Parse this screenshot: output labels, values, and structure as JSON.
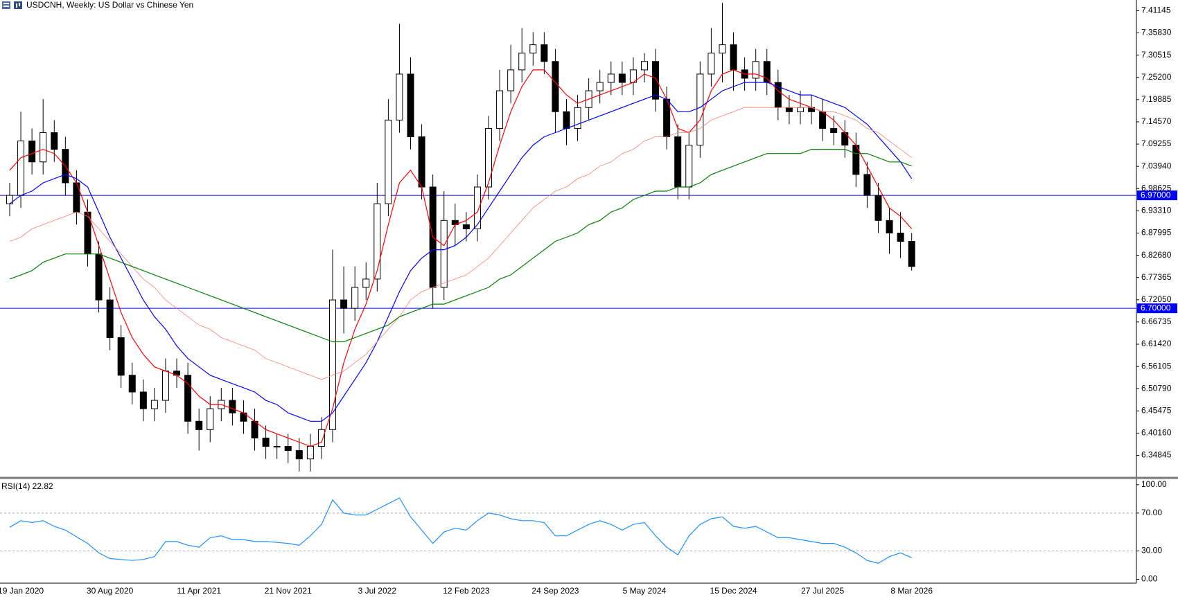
{
  "chart_data": {
    "type": "candlestick",
    "title": "USDCNH, Weekly:  US Dollar vs Chinese Yen",
    "categories": [
      null,
      "19 Jan 2020",
      null,
      null,
      null,
      null,
      null,
      null,
      null,
      "30 Aug 2020",
      null,
      null,
      null,
      null,
      null,
      null,
      null,
      "11 Apr 2021",
      null,
      null,
      null,
      null,
      null,
      null,
      null,
      "21 Nov 2021",
      null,
      null,
      null,
      null,
      null,
      null,
      null,
      "3 Jul 2022",
      null,
      null,
      null,
      null,
      null,
      null,
      null,
      "12 Feb 2023",
      null,
      null,
      null,
      null,
      null,
      null,
      null,
      "24 Sep 2023",
      null,
      null,
      null,
      null,
      null,
      null,
      null,
      "5 May 2024",
      null,
      null,
      null,
      null,
      null,
      null,
      null,
      "15 Dec 2024",
      null,
      null,
      null,
      null,
      null,
      null,
      null,
      "27 Jul 2025",
      null,
      null,
      null,
      null,
      null,
      null,
      null,
      "8 Mar 2026"
    ],
    "open": [
      6.95,
      6.97,
      7.1,
      7.05,
      7.12,
      7.08,
      7.0,
      6.93,
      6.83,
      6.72,
      6.63,
      6.54,
      6.5,
      6.46,
      6.48,
      6.55,
      6.54,
      6.43,
      6.41,
      6.46,
      6.48,
      6.45,
      6.43,
      6.39,
      6.37,
      6.37,
      6.36,
      6.34,
      6.37,
      6.41,
      6.72,
      6.7,
      6.75,
      6.77,
      6.95,
      7.15,
      7.26,
      7.11,
      6.99,
      6.75,
      6.91,
      6.9,
      6.89,
      6.99,
      7.13,
      7.22,
      7.27,
      7.31,
      7.33,
      7.29,
      7.17,
      7.13,
      7.18,
      7.22,
      7.24,
      7.26,
      7.24,
      7.27,
      7.29,
      7.2,
      7.11,
      6.99,
      7.09,
      7.26,
      7.31,
      7.33,
      7.27,
      7.25,
      7.29,
      7.24,
      7.18,
      7.17,
      7.18,
      7.17,
      7.13,
      7.12,
      7.09,
      7.02,
      6.97,
      6.91,
      6.88,
      6.86
    ],
    "high": [
      7.0,
      7.17,
      7.13,
      7.2,
      7.15,
      7.11,
      7.03,
      6.96,
      6.86,
      6.75,
      6.66,
      6.57,
      6.53,
      6.51,
      6.58,
      6.58,
      6.57,
      6.46,
      6.49,
      6.51,
      6.51,
      6.48,
      6.46,
      6.42,
      6.4,
      6.4,
      6.39,
      6.4,
      6.44,
      6.84,
      6.8,
      6.8,
      6.81,
      7.0,
      7.2,
      7.38,
      7.3,
      7.14,
      7.02,
      6.98,
      6.95,
      6.93,
      7.02,
      7.16,
      7.27,
      7.33,
      7.37,
      7.36,
      7.36,
      7.32,
      7.2,
      7.21,
      7.25,
      7.27,
      7.29,
      7.29,
      7.3,
      7.31,
      7.32,
      7.23,
      7.14,
      7.12,
      7.29,
      7.37,
      7.43,
      7.36,
      7.3,
      7.32,
      7.32,
      7.27,
      7.21,
      7.22,
      7.21,
      7.2,
      7.16,
      7.15,
      7.12,
      7.05,
      7.0,
      6.94,
      6.93,
      6.88
    ],
    "low": [
      6.92,
      6.94,
      7.02,
      7.02,
      7.05,
      6.97,
      6.9,
      6.8,
      6.69,
      6.6,
      6.51,
      6.47,
      6.43,
      6.43,
      6.45,
      6.51,
      6.4,
      6.36,
      6.38,
      6.43,
      6.42,
      6.4,
      6.36,
      6.34,
      6.34,
      6.33,
      6.31,
      6.31,
      6.34,
      6.38,
      6.64,
      6.67,
      6.72,
      6.74,
      6.92,
      7.12,
      7.08,
      6.96,
      6.7,
      6.72,
      6.85,
      6.86,
      6.86,
      6.96,
      7.1,
      7.19,
      7.24,
      7.28,
      7.26,
      7.12,
      7.09,
      7.1,
      7.15,
      7.19,
      7.21,
      7.21,
      7.21,
      7.24,
      7.17,
      7.08,
      6.96,
      6.96,
      7.06,
      7.23,
      7.24,
      7.22,
      7.22,
      7.22,
      7.21,
      7.15,
      7.14,
      7.14,
      7.14,
      7.1,
      7.09,
      7.06,
      6.99,
      6.94,
      6.88,
      6.83,
      6.82,
      6.79
    ],
    "close": [
      6.97,
      7.1,
      7.05,
      7.12,
      7.08,
      7.0,
      6.93,
      6.83,
      6.72,
      6.63,
      6.54,
      6.5,
      6.46,
      6.48,
      6.55,
      6.54,
      6.43,
      6.41,
      6.46,
      6.48,
      6.45,
      6.43,
      6.39,
      6.37,
      6.37,
      6.36,
      6.34,
      6.37,
      6.41,
      6.72,
      6.7,
      6.75,
      6.77,
      6.95,
      7.15,
      7.26,
      7.11,
      6.99,
      6.75,
      6.91,
      6.9,
      6.89,
      6.99,
      7.13,
      7.22,
      7.27,
      7.31,
      7.33,
      7.29,
      7.17,
      7.13,
      7.18,
      7.22,
      7.24,
      7.26,
      7.24,
      7.27,
      7.29,
      7.2,
      7.11,
      6.99,
      7.09,
      7.26,
      7.31,
      7.33,
      7.27,
      7.25,
      7.29,
      7.24,
      7.18,
      7.17,
      7.18,
      7.17,
      7.13,
      7.12,
      7.09,
      7.02,
      6.97,
      6.91,
      6.88,
      6.86,
      6.8
    ],
    "up_color": "#ffffff",
    "down_color": "#000000",
    "ylim": [
      6.298,
      7.437
    ],
    "yticks": [
      7.41145,
      {
        "value": 7.3583,
        "label": "7.35830"
      },
      7.30515,
      {
        "value": 7.252,
        "label": "7.25200"
      },
      7.19885,
      {
        "value": 7.1457,
        "label": "7.14570"
      },
      7.09255,
      {
        "value": 7.0394,
        "label": "7.03940"
      },
      6.98625,
      {
        "value": 6.9331,
        "label": "6.93310"
      },
      6.87995,
      {
        "value": 6.8268,
        "label": "6.82680"
      },
      6.77365,
      {
        "value": 6.7205,
        "label": "6.72050"
      },
      6.66735,
      {
        "value": 6.6142,
        "label": "6.61420"
      },
      6.56105,
      {
        "value": 6.5079,
        "label": "6.50790"
      },
      6.45475,
      {
        "value": 6.4016,
        "label": "6.40160"
      },
      6.34845
    ],
    "hlines": [
      {
        "value": 6.97,
        "label": "6.97000"
      },
      {
        "value": 6.7,
        "label": "6.70000"
      }
    ],
    "hline_color": "#0000ff",
    "overlays": [
      {
        "color": "#ff0000",
        "values": [
          7.03,
          7.06,
          7.07,
          7.08,
          7.07,
          7.04,
          7.0,
          6.93,
          6.85,
          6.77,
          6.69,
          6.63,
          6.59,
          6.56,
          6.55,
          6.54,
          6.52,
          6.49,
          6.47,
          6.47,
          6.46,
          6.45,
          6.43,
          6.41,
          6.4,
          6.39,
          6.38,
          6.37,
          6.38,
          6.46,
          6.57,
          6.65,
          6.71,
          6.79,
          6.9,
          7.0,
          7.03,
          6.99,
          6.87,
          6.85,
          6.9,
          6.91,
          6.93,
          7.0,
          7.09,
          7.17,
          7.23,
          7.27,
          7.27,
          7.24,
          7.21,
          7.19,
          7.2,
          7.21,
          7.22,
          7.23,
          7.24,
          7.26,
          7.25,
          7.2,
          7.13,
          7.12,
          7.15,
          7.22,
          7.26,
          7.27,
          7.26,
          7.26,
          7.25,
          7.22,
          7.2,
          7.19,
          7.18,
          7.17,
          7.15,
          7.12,
          7.09,
          7.04,
          6.99,
          6.94,
          6.92,
          6.89
        ]
      },
      {
        "color": "#0000ff",
        "values": [
          6.95,
          6.97,
          6.98,
          7.0,
          7.01,
          7.02,
          7.01,
          6.99,
          6.93,
          6.87,
          6.82,
          6.77,
          6.72,
          6.68,
          6.65,
          6.61,
          6.58,
          6.56,
          6.54,
          6.53,
          6.52,
          6.51,
          6.5,
          6.48,
          6.47,
          6.45,
          6.44,
          6.43,
          6.43,
          6.45,
          6.49,
          6.53,
          6.57,
          6.62,
          6.68,
          6.74,
          6.79,
          6.82,
          6.84,
          6.84,
          6.85,
          6.87,
          6.9,
          6.94,
          6.98,
          7.02,
          7.06,
          7.09,
          7.11,
          7.12,
          7.13,
          7.14,
          7.15,
          7.16,
          7.17,
          7.18,
          7.19,
          7.2,
          7.21,
          7.2,
          7.17,
          7.17,
          7.18,
          7.2,
          7.22,
          7.23,
          7.24,
          7.24,
          7.24,
          7.23,
          7.22,
          7.21,
          7.21,
          7.2,
          7.19,
          7.18,
          7.16,
          7.14,
          7.11,
          7.08,
          7.05,
          7.01
        ]
      },
      {
        "color": "#fa8072",
        "values": [
          6.86,
          6.87,
          6.89,
          6.9,
          6.91,
          6.92,
          6.93,
          6.92,
          6.89,
          6.86,
          6.83,
          6.8,
          6.77,
          6.75,
          6.72,
          6.7,
          6.68,
          6.66,
          6.65,
          6.63,
          6.62,
          6.61,
          6.6,
          6.58,
          6.57,
          6.56,
          6.55,
          6.54,
          6.53,
          6.54,
          6.55,
          6.57,
          6.59,
          6.62,
          6.65,
          6.68,
          6.72,
          6.74,
          6.75,
          6.76,
          6.77,
          6.78,
          6.8,
          6.82,
          6.85,
          6.88,
          6.91,
          6.94,
          6.96,
          6.98,
          6.99,
          7.01,
          7.02,
          7.04,
          7.05,
          7.07,
          7.08,
          7.1,
          7.11,
          7.11,
          7.12,
          7.12,
          7.13,
          7.15,
          7.16,
          7.17,
          7.18,
          7.18,
          7.18,
          7.18,
          7.18,
          7.18,
          7.18,
          7.17,
          7.17,
          7.16,
          7.15,
          7.13,
          7.12,
          7.1,
          7.08,
          7.06
        ]
      },
      {
        "color": "#008000",
        "values": [
          6.77,
          6.78,
          6.79,
          6.81,
          6.82,
          6.83,
          6.83,
          6.83,
          6.83,
          6.82,
          6.81,
          6.8,
          6.79,
          6.78,
          6.77,
          6.76,
          6.75,
          6.74,
          6.73,
          6.72,
          6.71,
          6.7,
          6.69,
          6.68,
          6.67,
          6.66,
          6.65,
          6.64,
          6.63,
          6.62,
          6.62,
          6.63,
          6.64,
          6.65,
          6.66,
          6.68,
          6.69,
          6.7,
          6.71,
          6.71,
          6.72,
          6.73,
          6.74,
          6.75,
          6.77,
          6.78,
          6.8,
          6.82,
          6.84,
          6.86,
          6.87,
          6.88,
          6.9,
          6.91,
          6.93,
          6.94,
          6.96,
          6.97,
          6.98,
          6.98,
          6.99,
          6.99,
          7.0,
          7.02,
          7.03,
          7.04,
          7.05,
          7.06,
          7.07,
          7.07,
          7.07,
          7.07,
          7.08,
          7.08,
          7.08,
          7.08,
          7.07,
          7.07,
          7.06,
          7.05,
          7.05,
          7.04
        ]
      }
    ],
    "rsi": {
      "label": "RSI(14) 22.82",
      "color": "#1e90ff",
      "values": [
        55,
        62,
        60,
        62,
        56,
        52,
        45,
        38,
        28,
        22,
        21,
        20,
        21,
        24,
        40,
        40,
        36,
        34,
        44,
        46,
        42,
        42,
        40,
        40,
        39,
        38,
        36,
        46,
        58,
        84,
        70,
        68,
        68,
        74,
        80,
        86,
        66,
        52,
        38,
        50,
        54,
        52,
        62,
        70,
        68,
        64,
        62,
        62,
        60,
        46,
        46,
        52,
        58,
        62,
        58,
        52,
        58,
        60,
        46,
        34,
        26,
        46,
        58,
        64,
        66,
        56,
        54,
        56,
        50,
        44,
        44,
        42,
        40,
        38,
        38,
        34,
        28,
        20,
        17,
        24,
        28,
        22.82
      ],
      "ylim": [
        -4,
        105
      ],
      "yticks": [
        {
          "value": 100,
          "label": "100.00"
        },
        {
          "value": 70,
          "label": "70.00"
        },
        {
          "value": 30,
          "label": "30.00"
        },
        {
          "value": 0,
          "label": "0.00"
        }
      ],
      "levels": [
        70,
        30
      ]
    }
  }
}
